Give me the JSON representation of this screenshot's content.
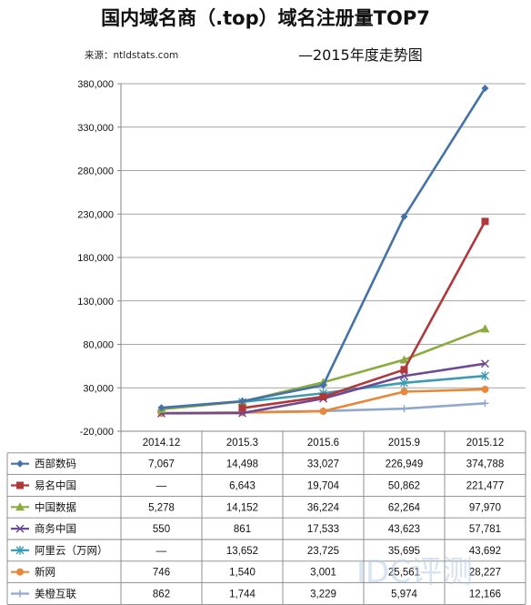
{
  "header": {
    "title": "国内域名商（.top）域名注册量TOP7",
    "subtitle": "—2015年度走势图",
    "source": "来源：ntldstats.com"
  },
  "colors": {
    "axis": "#868686",
    "grid": "#868686",
    "table_border": "#868686"
  },
  "chart_data": {
    "type": "line",
    "categories": [
      "2014.12",
      "2015.3",
      "2015.6",
      "2015.9",
      "2015.12"
    ],
    "ylim": [
      -20000,
      380000
    ],
    "yticks": [
      -20000,
      30000,
      80000,
      130000,
      180000,
      230000,
      280000,
      330000,
      380000
    ],
    "ytick_labels": [
      "-20,000",
      "30,000",
      "80,000",
      "130,000",
      "180,000",
      "230,000",
      "280,000",
      "330,000",
      "380,000"
    ],
    "grid": "horizontal",
    "legend": "data-table",
    "series": [
      {
        "name": "西部数码",
        "color": "#4472a8",
        "marker": "diamond",
        "values": [
          7067,
          14498,
          33027,
          226949,
          374788
        ],
        "labels": [
          "7,067",
          "14,498",
          "33,027",
          "226,949",
          "374,788"
        ]
      },
      {
        "name": "易名中国",
        "color": "#b0383b",
        "marker": "square",
        "values": [
          null,
          6643,
          19704,
          50862,
          221477
        ],
        "labels": [
          "—",
          "6,643",
          "19,704",
          "50,862",
          "221,477"
        ]
      },
      {
        "name": "中国数据",
        "color": "#8aac3e",
        "marker": "triangle",
        "values": [
          5278,
          14152,
          36224,
          62264,
          97970
        ],
        "labels": [
          "5,278",
          "14,152",
          "36,224",
          "62,264",
          "97,970"
        ]
      },
      {
        "name": "商务中国",
        "color": "#6f4a92",
        "marker": "x",
        "values": [
          550,
          861,
          17533,
          43623,
          57781
        ],
        "labels": [
          "550",
          "861",
          "17,533",
          "43,623",
          "57,781"
        ]
      },
      {
        "name": "阿里云（万网）",
        "color": "#3a9cb0",
        "marker": "star",
        "values": [
          null,
          13652,
          23725,
          35695,
          43692
        ],
        "labels": [
          "—",
          "13,652",
          "23,725",
          "35,695",
          "43,692"
        ]
      },
      {
        "name": "新网",
        "color": "#e6873a",
        "marker": "circle",
        "values": [
          746,
          1540,
          3001,
          25561,
          28227
        ],
        "labels": [
          "746",
          "1,540",
          "3,001",
          "25,561",
          "28,227"
        ]
      },
      {
        "name": "美橙互联",
        "color": "#8fa8cc",
        "marker": "plus",
        "values": [
          862,
          1744,
          3229,
          5974,
          12166
        ],
        "labels": [
          "862",
          "1,744",
          "3,229",
          "5,974",
          "12,166"
        ]
      }
    ]
  }
}
